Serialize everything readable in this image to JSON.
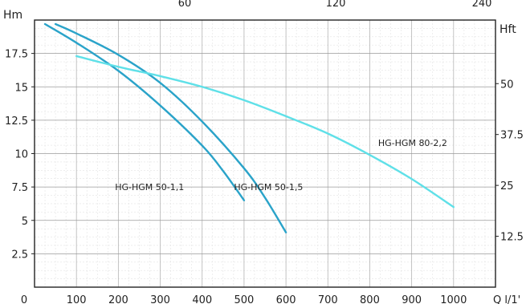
{
  "chart_data": {
    "type": "line",
    "title": "",
    "xlabel": "Q l/1'",
    "ylabel": "Hm",
    "ylabel_right": "Hft",
    "xlim": [
      0,
      1100
    ],
    "ylim": [
      0,
      20
    ],
    "x_ticks": [
      "0",
      "100",
      "200",
      "300",
      "400",
      "500",
      "600",
      "700",
      "800",
      "900",
      "1000"
    ],
    "y_ticks": [
      "2.5",
      "5",
      "7.5",
      "10",
      "12.5",
      "15",
      "17.5"
    ],
    "y_ticks_right": [
      "12.5",
      "25",
      "37.5",
      "50"
    ],
    "top_ticks_partial": [
      "60",
      "120",
      "240"
    ],
    "grid": true,
    "series": [
      {
        "name": "HG-HGM 50-1,1",
        "color": "#2aa3c9",
        "x": [
          25,
          100,
          200,
          300,
          400,
          450,
          500
        ],
        "y": [
          19.7,
          18.3,
          16.2,
          13.6,
          10.6,
          8.7,
          6.5
        ]
      },
      {
        "name": "HG-HGM 50-1,5",
        "color": "#2aa3c9",
        "x": [
          50,
          100,
          200,
          300,
          400,
          500,
          550,
          600
        ],
        "y": [
          19.7,
          19.0,
          17.4,
          15.3,
          12.4,
          8.9,
          6.7,
          4.1
        ]
      },
      {
        "name": "HG-HGM 80-2,2",
        "color": "#5fe0e8",
        "x": [
          100,
          200,
          300,
          400,
          500,
          600,
          700,
          800,
          900,
          1000
        ],
        "y": [
          17.3,
          16.5,
          15.8,
          15.0,
          14.0,
          12.8,
          11.5,
          9.9,
          8.1,
          6.0
        ]
      }
    ]
  }
}
